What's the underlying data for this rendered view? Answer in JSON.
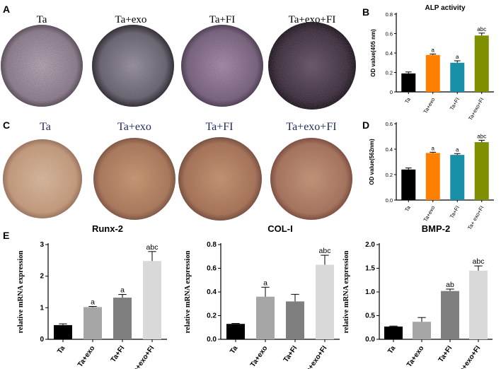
{
  "panel_letters": {
    "a": "A",
    "b": "B",
    "c": "C",
    "d": "D",
    "e": "E"
  },
  "wells_a": {
    "labels": [
      "Ta",
      "Ta+exo",
      "Ta+FI",
      "Ta+exo+FI"
    ]
  },
  "wells_c": {
    "labels": [
      "Ta",
      "Ta+exo",
      "Ta+FI",
      "Ta+exo+FI"
    ]
  },
  "chart_data": [
    {
      "id": "B",
      "type": "bar",
      "title": "ALP activity",
      "xlabel": "",
      "ylabel": "OD value(405 nm)",
      "categories": [
        "Ta",
        "Ta+exo",
        "Ta+FI",
        "Ta+exo+FI"
      ],
      "values": [
        0.19,
        0.38,
        0.3,
        0.58
      ],
      "errors": [
        0.015,
        0.01,
        0.02,
        0.025
      ],
      "annotations": [
        "",
        "a",
        "a",
        "abc"
      ],
      "colors": [
        "#000000",
        "#ff8000",
        "#1a8fa8",
        "#7f8f00"
      ],
      "ylim": [
        0,
        0.8
      ],
      "yticks": [
        0.0,
        0.2,
        0.4,
        0.6,
        0.8
      ],
      "ytick_labels": [
        "0",
        "0.2",
        "0.4",
        "0.6",
        "0.8"
      ]
    },
    {
      "id": "D",
      "type": "bar",
      "title": "",
      "xlabel": "",
      "ylabel": "OD value(562nm)",
      "categories": [
        "Ta",
        "Ta+exo",
        "Ta+FI",
        "Ta+ exo+FI"
      ],
      "values": [
        0.24,
        0.37,
        0.355,
        0.455
      ],
      "errors": [
        0.012,
        0.006,
        0.01,
        0.015
      ],
      "annotations": [
        "",
        "a",
        "a",
        "abc"
      ],
      "colors": [
        "#000000",
        "#ff8000",
        "#1a8fa8",
        "#7f8f00"
      ],
      "ylim": [
        0,
        0.6
      ],
      "yticks": [
        0.0,
        0.2,
        0.4,
        0.6
      ],
      "ytick_labels": [
        "0.0",
        "0.2",
        "0.4",
        "0.6"
      ]
    },
    {
      "id": "E1",
      "type": "bar",
      "title": "Runx-2",
      "xlabel": "",
      "ylabel": "relative mRNA expression",
      "categories": [
        "Ta",
        "Ta+exo",
        "Ta+FI",
        "Ta+exo+FI"
      ],
      "values": [
        0.45,
        1.02,
        1.32,
        2.48
      ],
      "errors": [
        0.04,
        0.02,
        0.1,
        0.3
      ],
      "annotations": [
        "",
        "a",
        "a",
        "abc"
      ],
      "colors": [
        "#000000",
        "#a6a6a6",
        "#7f7f7f",
        "#d9d9d9"
      ],
      "ylim": [
        0,
        3
      ],
      "yticks": [
        0,
        1,
        2,
        3
      ],
      "ytick_labels": [
        "0",
        "1",
        "2",
        "3"
      ]
    },
    {
      "id": "E2",
      "type": "bar",
      "title": "COL-I",
      "xlabel": "",
      "ylabel": "relative mRNA expression",
      "categories": [
        "Ta",
        "Ta+exo",
        "Ta+FI",
        "Ta+exo+FI"
      ],
      "values": [
        0.13,
        0.36,
        0.32,
        0.63
      ],
      "errors": [
        0.004,
        0.08,
        0.06,
        0.08
      ],
      "annotations": [
        "",
        "a",
        "",
        "abc"
      ],
      "colors": [
        "#000000",
        "#a6a6a6",
        "#7f7f7f",
        "#d9d9d9"
      ],
      "ylim": [
        0,
        0.8
      ],
      "yticks": [
        0.0,
        0.2,
        0.4,
        0.6,
        0.8
      ],
      "ytick_labels": [
        "0.0",
        "0.2",
        "0.4",
        "0.6",
        "0.8"
      ]
    },
    {
      "id": "E3",
      "type": "bar",
      "title": "BMP-2",
      "xlabel": "",
      "ylabel": "relative mRNA expression",
      "categories": [
        "Ta",
        "Ta+exo",
        "Ta+FI",
        "Ta+exo+FI"
      ],
      "values": [
        0.27,
        0.37,
        1.02,
        1.45
      ],
      "errors": [
        0.01,
        0.09,
        0.04,
        0.1
      ],
      "annotations": [
        "",
        "",
        "ab",
        "abc"
      ],
      "colors": [
        "#000000",
        "#a6a6a6",
        "#7f7f7f",
        "#d9d9d9"
      ],
      "ylim": [
        0,
        2.0
      ],
      "yticks": [
        0.0,
        0.5,
        1.0,
        1.5,
        2.0
      ],
      "ytick_labels": [
        "0.0",
        "0.5",
        "1.0",
        "1.5",
        "2.0"
      ]
    }
  ]
}
